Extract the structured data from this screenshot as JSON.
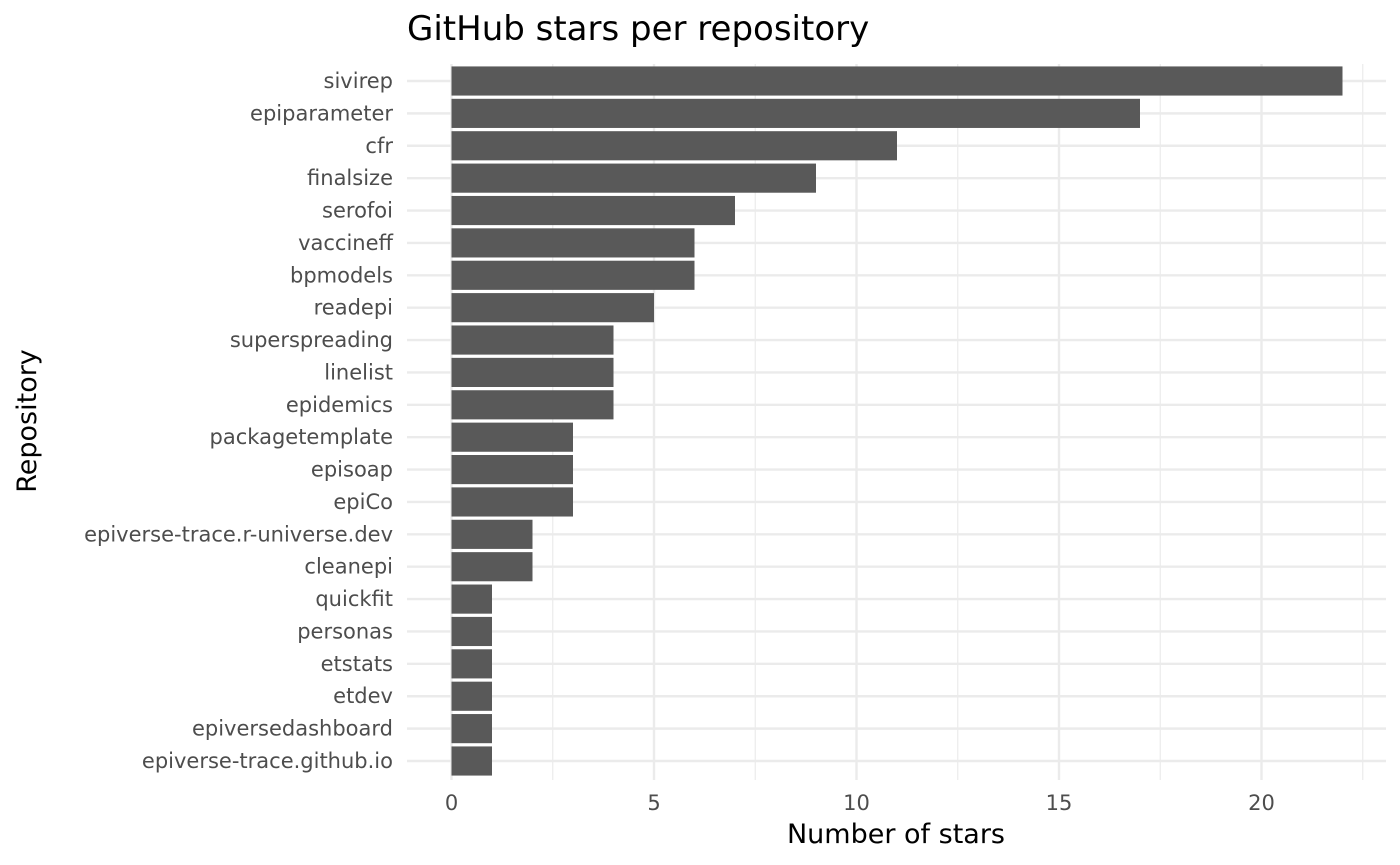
{
  "chart_data": {
    "type": "bar",
    "orientation": "horizontal",
    "title": "GitHub stars per repository",
    "xlabel": "Number of stars",
    "ylabel": "Repository",
    "categories": [
      "sivirep",
      "epiparameter",
      "cfr",
      "finalsize",
      "serofoi",
      "vaccineff",
      "bpmodels",
      "readepi",
      "superspreading",
      "linelist",
      "epidemics",
      "packagetemplate",
      "episoap",
      "epiCo",
      "epiverse-trace.r-universe.dev",
      "cleanepi",
      "quickfit",
      "personas",
      "etstats",
      "etdev",
      "epiversedashboard",
      "epiverse-trace.github.io"
    ],
    "values": [
      22,
      17,
      11,
      9,
      7,
      6,
      6,
      5,
      4,
      4,
      4,
      3,
      3,
      3,
      2,
      2,
      1,
      1,
      1,
      1,
      1,
      1
    ],
    "xticks": [
      0,
      5,
      10,
      15,
      20
    ],
    "xlim": [
      -1.1,
      23.1
    ],
    "grid": true,
    "bar_color": "#595959",
    "grid_color": "#ebebeb"
  }
}
